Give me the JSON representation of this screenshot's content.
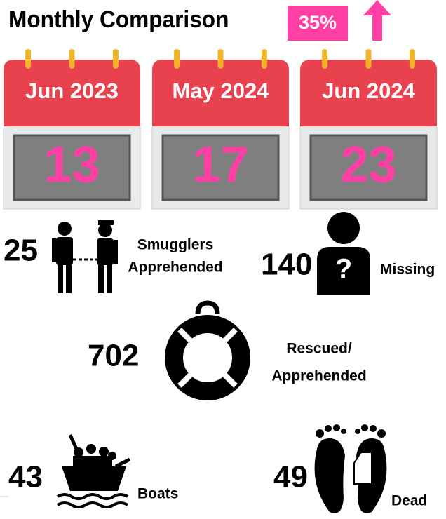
{
  "title": "Monthly Comparison",
  "change": "35%",
  "calendars": [
    {
      "month": "Jun 2023",
      "value": "13"
    },
    {
      "month": "May 2024",
      "value": "17"
    },
    {
      "month": "Jun 2024",
      "value": "23"
    }
  ],
  "stats": [
    {
      "value": "25",
      "label": [
        "Smugglers",
        "Apprehended"
      ]
    },
    {
      "value": "140",
      "label": [
        "Missing"
      ]
    },
    {
      "value": "702",
      "label": [
        "Rescued/",
        "Apprehended"
      ]
    },
    {
      "value": "43",
      "label": [
        "Boats"
      ]
    },
    {
      "value": "49",
      "label": [
        "Dead"
      ]
    }
  ]
}
